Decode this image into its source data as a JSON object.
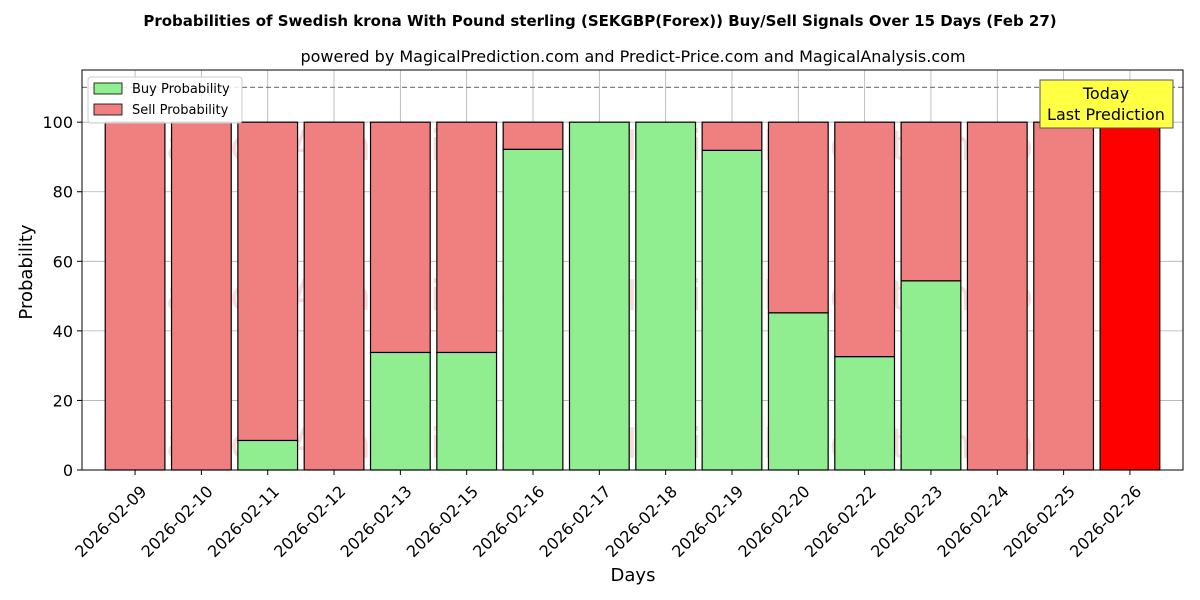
{
  "chart_data": {
    "type": "bar",
    "stacked": true,
    "title": "Probabilities of Swedish krona With Pound sterling (SEKGBP(Forex)) Buy/Sell Signals Over 15 Days (Feb 27)",
    "subtitle": "powered by MagicalPrediction.com and Predict-Price.com and MagicalAnalysis.com",
    "xlabel": "Days",
    "ylabel": "Probability",
    "ylim": [
      0,
      115
    ],
    "yticks": [
      0,
      20,
      40,
      60,
      80,
      100
    ],
    "grid": true,
    "legend_position": "top-left",
    "categories": [
      "2026-02-09",
      "2026-02-10",
      "2026-02-11",
      "2026-02-12",
      "2026-02-13",
      "2026-02-15",
      "2026-02-16",
      "2026-02-17",
      "2026-02-18",
      "2026-02-19",
      "2026-02-20",
      "2026-02-22",
      "2026-02-23",
      "2026-02-24",
      "2026-02-25",
      "2026-02-26"
    ],
    "series": [
      {
        "name": "Buy Probability",
        "color": "#90ee90",
        "values": [
          0,
          0,
          8.5,
          0,
          33.8,
          33.8,
          92.2,
          100,
          100,
          91.9,
          45.2,
          32.6,
          54.4,
          0,
          0,
          0
        ]
      },
      {
        "name": "Sell Probability",
        "color": "#f08080",
        "values": [
          100,
          100,
          91.5,
          100,
          66.2,
          66.2,
          7.8,
          0,
          0,
          8.1,
          54.8,
          67.4,
          45.6,
          100,
          100,
          100
        ]
      }
    ],
    "highlight": {
      "index": 15,
      "color": "#ff0000"
    },
    "reference_line": {
      "y": 110,
      "style": "dashed",
      "color": "#808080"
    },
    "annotation": {
      "lines": [
        "Today",
        "Last Prediction"
      ],
      "background": "#ffff44"
    },
    "watermarks": [
      "MagicalAnalysis.com",
      "MagicalPrediction.com"
    ]
  }
}
